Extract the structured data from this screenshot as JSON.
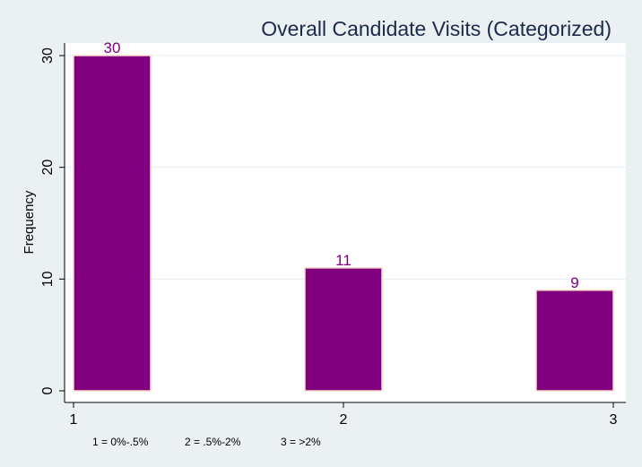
{
  "chart_data": {
    "type": "bar",
    "title": "Overall Candidate Visits (Categorized)",
    "xlabel": "",
    "ylabel": "Frequency",
    "x": [
      1,
      2,
      3
    ],
    "values": [
      30,
      11,
      9
    ],
    "data_labels": [
      "30",
      "11",
      "9"
    ],
    "xticks": [
      "1",
      "2",
      "3"
    ],
    "yticks": [
      "0",
      "10",
      "20",
      "30"
    ],
    "ylim": [
      0,
      30
    ],
    "xlim": [
      1,
      3
    ],
    "grid": true,
    "colors": {
      "bar_fill": "#800080",
      "bar_edge": "#f5dcc8",
      "plot_bg": "#ffffff",
      "page_bg": "#ebf0f3",
      "grid": "#e6edf1",
      "title": "#1a2a4a",
      "label": "#800080"
    }
  },
  "footnote": [
    "1 = 0%-.5%",
    "2 = .5%-2%",
    "3 = >2%"
  ]
}
